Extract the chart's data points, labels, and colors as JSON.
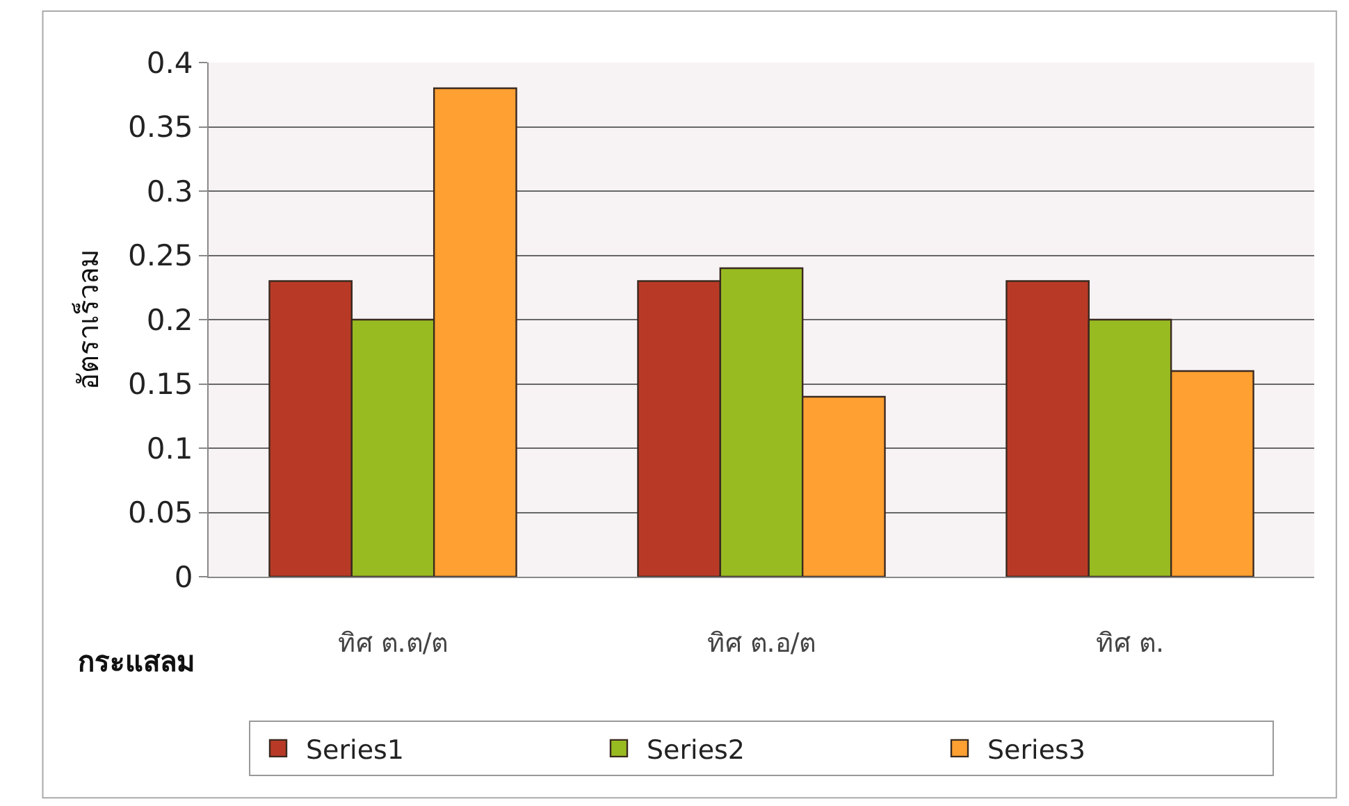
{
  "chart_data": {
    "type": "bar",
    "xlabel": "กระแสลม",
    "ylabel": "อัตราเร็วลม",
    "categories": [
      "ทิศ ต.ต/ต",
      "ทิศ ต.อ/ต",
      "ทิศ ต."
    ],
    "series": [
      {
        "name": "Series1",
        "color": "#b83a26",
        "values": [
          0.23,
          0.23,
          0.23
        ]
      },
      {
        "name": "Series2",
        "color": "#99bb22",
        "values": [
          0.2,
          0.24,
          0.2
        ]
      },
      {
        "name": "Series3",
        "color": "#ffa032",
        "values": [
          0.38,
          0.14,
          0.16
        ]
      }
    ],
    "ylim": [
      0,
      0.4
    ],
    "yticks": [
      0,
      0.05,
      0.1,
      0.15,
      0.2,
      0.25,
      0.3,
      0.35,
      0.4
    ],
    "grid": "y",
    "legend": "bottom"
  }
}
